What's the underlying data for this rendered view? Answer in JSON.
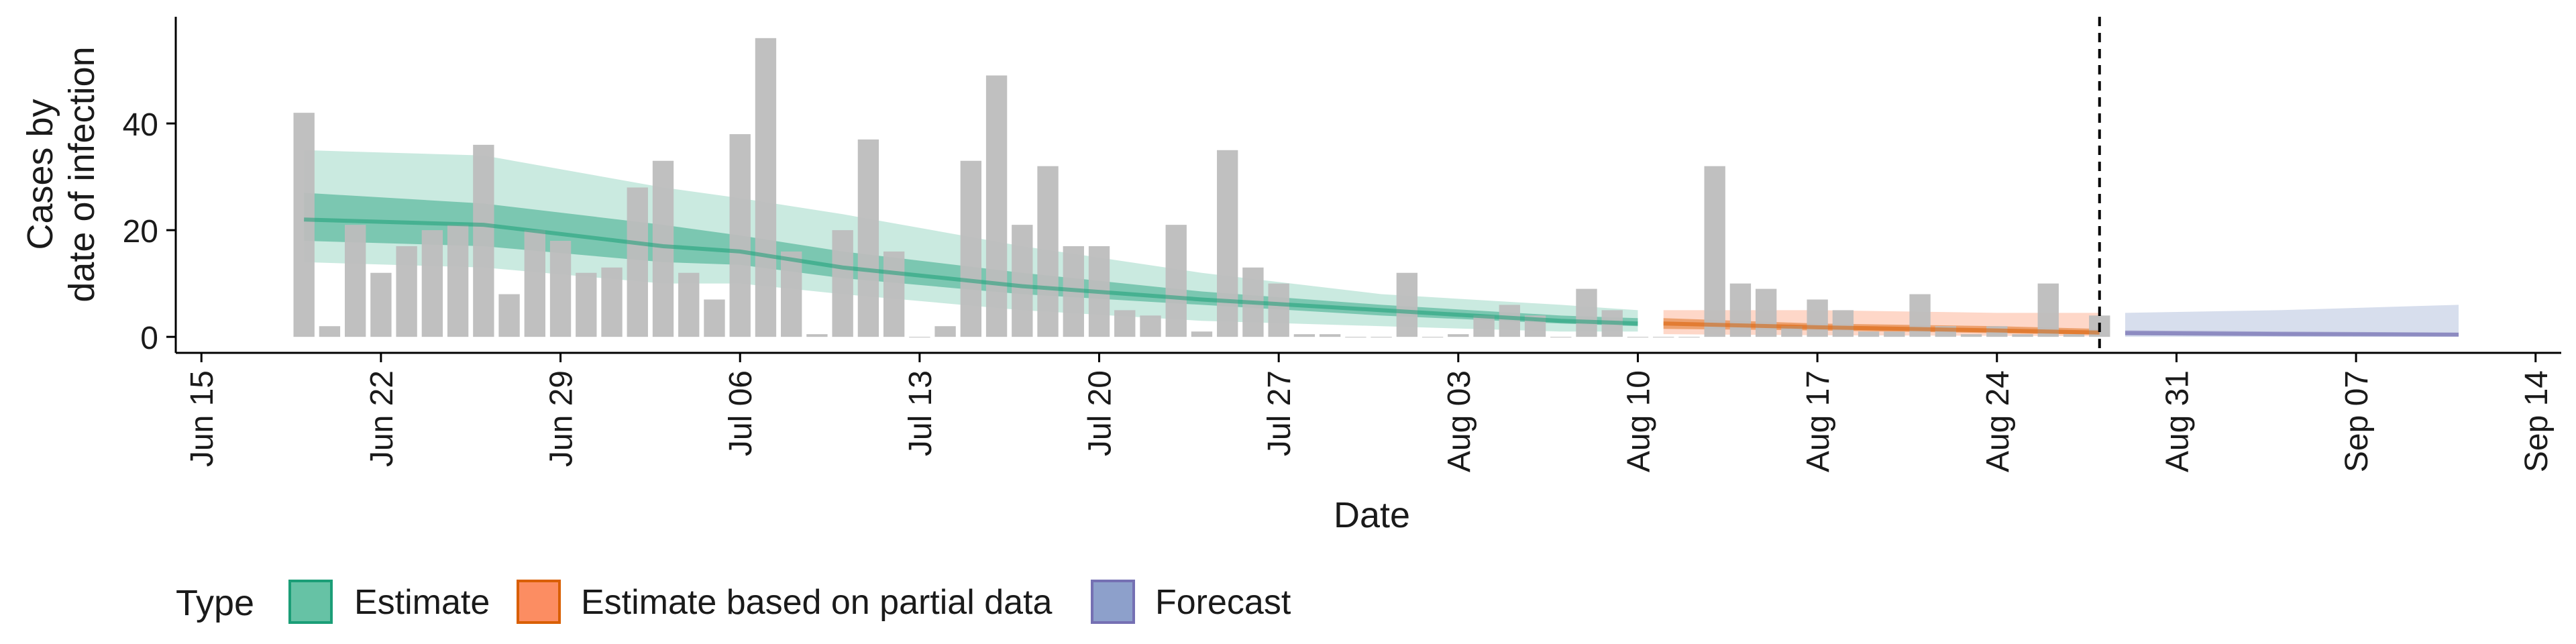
{
  "chart_data": {
    "type": "bar",
    "title": "",
    "xlabel": "Date",
    "ylabel_lines": [
      "Cases by",
      "date of infection"
    ],
    "x_axis": {
      "type": "date",
      "range": [
        "2020-06-14",
        "2020-09-15"
      ],
      "ticks": [
        "2020-06-15",
        "2020-06-22",
        "2020-06-29",
        "2020-07-06",
        "2020-07-13",
        "2020-07-20",
        "2020-07-27",
        "2020-08-03",
        "2020-08-10",
        "2020-08-17",
        "2020-08-24",
        "2020-08-31",
        "2020-09-07",
        "2020-09-14"
      ],
      "tick_labels": [
        "Jun 15",
        "Jun 22",
        "Jun 29",
        "Jul 06",
        "Jul 13",
        "Jul 20",
        "Jul 27",
        "Aug 03",
        "Aug 10",
        "Aug 17",
        "Aug 24",
        "Aug 31",
        "Sep 07",
        "Sep 14"
      ]
    },
    "y_axis": {
      "range": [
        -3,
        60
      ],
      "ticks": [
        0,
        20,
        40
      ],
      "tick_labels": [
        "0",
        "20",
        "40"
      ]
    },
    "grid": false,
    "bars": {
      "color": "#bdbdbd",
      "start_date": "2020-06-19",
      "values": [
        42,
        2,
        21,
        12,
        17,
        20,
        21,
        36,
        8,
        20,
        18,
        12,
        13,
        28,
        33,
        12,
        7,
        38,
        56,
        16,
        0.5,
        20,
        37,
        16,
        0,
        2,
        33,
        49,
        21,
        32,
        17,
        17,
        5,
        4,
        21,
        1,
        35,
        13,
        10,
        0.5,
        0.5,
        0,
        0,
        12,
        0,
        0.5,
        4,
        6,
        4,
        0,
        9,
        5,
        0,
        0,
        0,
        32,
        10,
        9,
        2,
        7,
        5,
        1,
        1,
        8,
        2,
        0.5,
        2,
        0.5,
        10,
        0.5,
        4
      ]
    },
    "vline": {
      "date": "2020-08-28",
      "style": "dashed",
      "color": "#000000"
    },
    "bands": [
      {
        "name": "Estimate",
        "color": "#1b9e77",
        "fill": "#66c2a5",
        "dates": [
          "2020-06-19",
          "2020-06-26",
          "2020-07-03",
          "2020-07-06",
          "2020-07-10",
          "2020-07-17",
          "2020-07-24",
          "2020-07-31",
          "2020-08-07",
          "2020-08-10"
        ],
        "median": [
          22,
          21,
          17,
          16,
          13,
          9.5,
          7,
          5,
          3,
          2.5
        ],
        "inner": [
          [
            18,
            27
          ],
          [
            17,
            25
          ],
          [
            14,
            21
          ],
          [
            13.5,
            19
          ],
          [
            11,
            16
          ],
          [
            8,
            12
          ],
          [
            6,
            8.5
          ],
          [
            4,
            6
          ],
          [
            2.5,
            4
          ],
          [
            2,
            3.5
          ]
        ],
        "outer": [
          [
            14,
            35
          ],
          [
            13,
            34
          ],
          [
            10,
            28
          ],
          [
            10,
            26
          ],
          [
            8,
            23
          ],
          [
            5,
            17
          ],
          [
            3,
            12
          ],
          [
            2,
            8
          ],
          [
            1,
            6
          ],
          [
            1,
            5
          ]
        ]
      },
      {
        "name": "Estimate based on partial data",
        "color": "#d95f02",
        "fill": "#fc8d62",
        "dates": [
          "2020-08-11",
          "2020-08-17",
          "2020-08-24",
          "2020-08-28"
        ],
        "median": [
          2.5,
          1.8,
          1.2,
          0.8
        ],
        "inner": [
          [
            1.5,
            3.5
          ],
          [
            1.2,
            2.5
          ],
          [
            0.7,
            2
          ],
          [
            0.4,
            1.5
          ]
        ],
        "outer": [
          [
            0.5,
            5
          ],
          [
            0.3,
            5
          ],
          [
            0.2,
            4.5
          ],
          [
            0.1,
            4.5
          ]
        ]
      },
      {
        "name": "Forecast",
        "color": "#7570b3",
        "fill": "#8da0cb",
        "dates": [
          "2020-08-29",
          "2020-09-04",
          "2020-09-11"
        ],
        "median": [
          0.7,
          0.5,
          0.4
        ],
        "inner": [
          [
            0.3,
            1.2
          ],
          [
            0.2,
            1
          ],
          [
            0.15,
            0.8
          ]
        ],
        "outer": [
          [
            0,
            4.5
          ],
          [
            0,
            5
          ],
          [
            0,
            6
          ]
        ]
      }
    ],
    "legend": {
      "position": "bottom",
      "title": "Type",
      "items": [
        {
          "label": "Estimate",
          "fill": "#66c2a5",
          "stroke": "#1b9e77"
        },
        {
          "label": "Estimate based on partial data",
          "fill": "#fc8d62",
          "stroke": "#d95f02"
        },
        {
          "label": "Forecast",
          "fill": "#8da0cb",
          "stroke": "#7570b3"
        }
      ]
    }
  }
}
